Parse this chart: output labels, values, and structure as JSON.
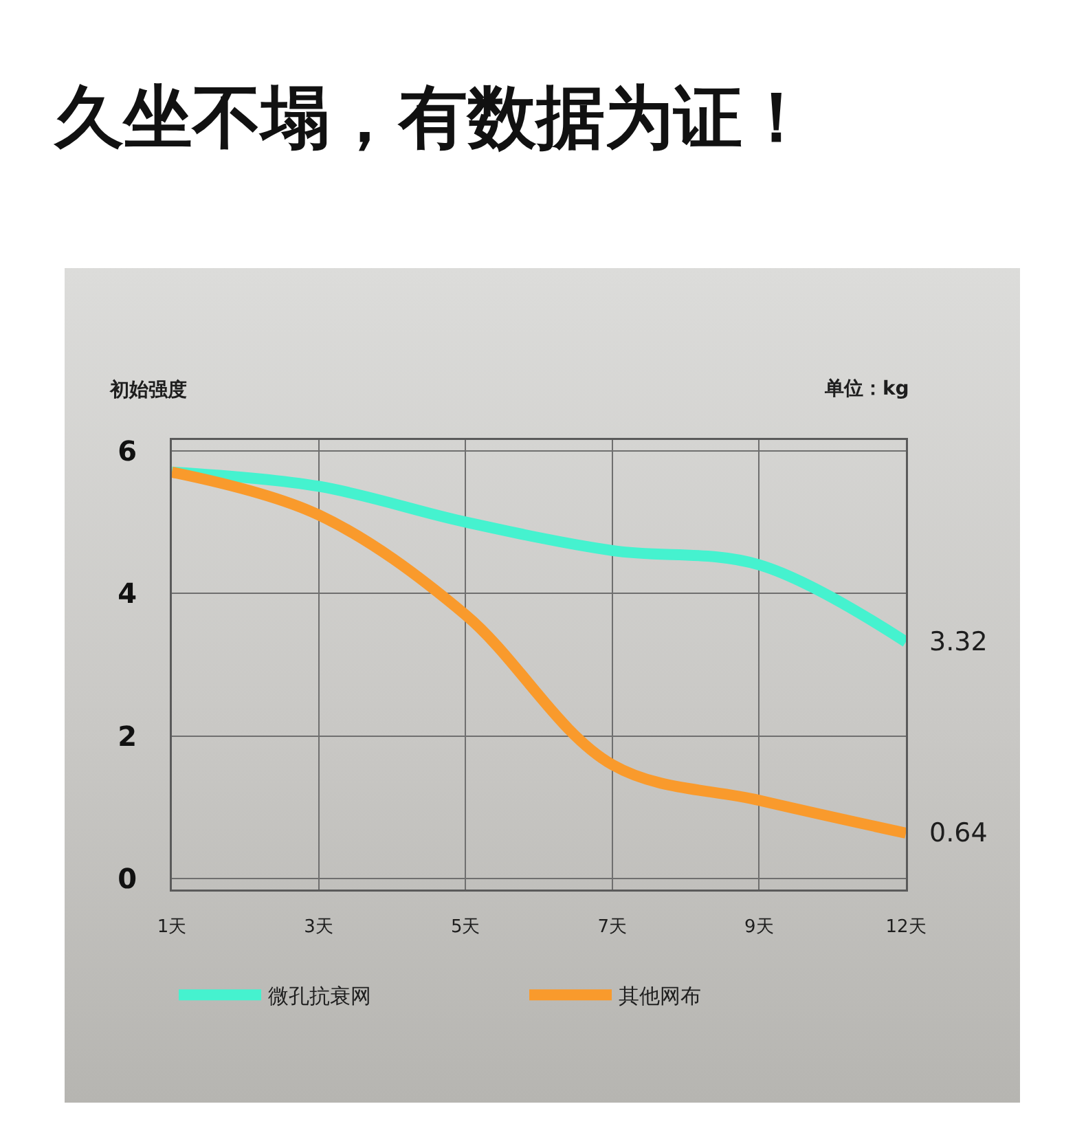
{
  "chart_data": {
    "type": "line",
    "title": "久坐不塌，有数据为证！",
    "ylabel": "初始强度",
    "annotations": [
      "单位：kg"
    ],
    "categories": [
      "1天",
      "3天",
      "5天",
      "7天",
      "9天",
      "12天"
    ],
    "series": [
      {
        "name": "微孔抗衰网",
        "color": "#45f2cf",
        "values": [
          5.7,
          5.5,
          5.0,
          4.6,
          4.4,
          3.32
        ],
        "value_labels": [
          null,
          null,
          null,
          null,
          null,
          "3.32"
        ]
      },
      {
        "name": "其他网布",
        "color": "#f99a2c",
        "values": [
          5.7,
          5.1,
          3.7,
          1.6,
          1.1,
          0.64
        ],
        "value_labels": [
          null,
          null,
          null,
          null,
          null,
          "0.64"
        ]
      }
    ],
    "ylim": [
      -0.15,
      6.15
    ],
    "yticks": [
      0,
      2,
      4,
      6
    ],
    "grid": true,
    "legend": "bottom",
    "line_style": "solid"
  }
}
